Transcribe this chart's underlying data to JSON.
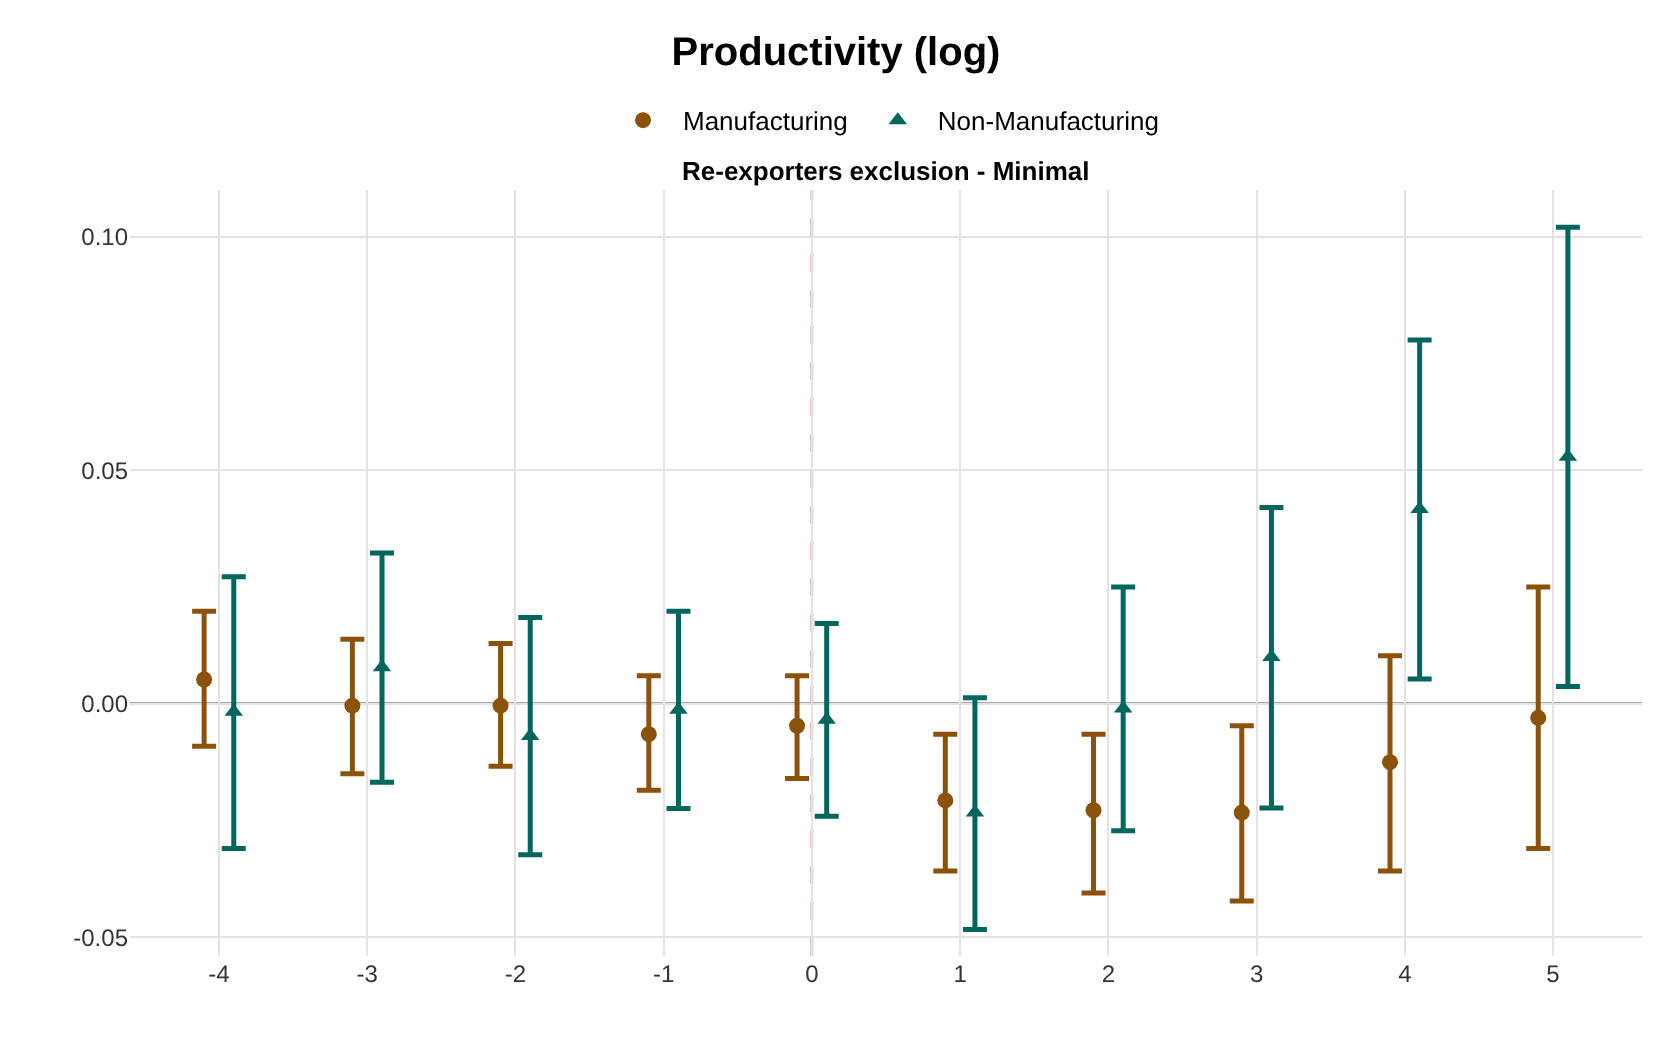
{
  "chart_data": {
    "type": "scatter",
    "title": "Productivity (log)",
    "subtitle": "Re-exporters exclusion - Minimal",
    "xlim": [
      -4.6,
      5.6
    ],
    "xticks": [
      -4,
      -3,
      -2,
      -1,
      0,
      1,
      2,
      3,
      4,
      5
    ],
    "ylim": [
      -0.054,
      0.11
    ],
    "yticks": [
      {
        "value": 0.1,
        "label": "0.10"
      },
      {
        "value": 0.05,
        "label": "0.05"
      },
      {
        "value": 0,
        "label": "0.00"
      },
      {
        "value": -0.05,
        "label": "-0.05"
      }
    ],
    "grid": true,
    "legend": "top",
    "ref_lines": [
      {
        "axis": "x",
        "value": 0,
        "color": "#c0737a",
        "line_style": "dashed"
      },
      {
        "axis": "y",
        "value": 0,
        "color": "#555555",
        "line_style": "solid"
      }
    ],
    "series": [
      {
        "name": "Manufacturing",
        "color": "#8c510a",
        "marker": "circle",
        "x": [
          -4.1,
          -3.1,
          -2.1,
          -1.1,
          -0.1,
          0.9,
          1.9,
          2.9,
          3.9,
          4.9
        ],
        "values": [
          0.0052,
          -0.0004,
          -0.0004,
          -0.0065,
          -0.0047,
          -0.0207,
          -0.0228,
          -0.0233,
          -0.0125,
          -0.003
        ],
        "errors": [
          [
            -0.0091,
            0.0198
          ],
          [
            -0.015,
            0.0138
          ],
          [
            -0.0134,
            0.0129
          ],
          [
            -0.0185,
            0.006
          ],
          [
            -0.016,
            0.006
          ],
          [
            -0.0358,
            -0.0065
          ],
          [
            -0.0405,
            -0.0065
          ],
          [
            -0.0422,
            -0.0047
          ],
          [
            -0.0358,
            0.0103
          ],
          [
            -0.031,
            0.025
          ]
        ]
      },
      {
        "name": "Non-Manufacturing",
        "color": "#01665e",
        "marker": "triangle",
        "x": [
          -3.9,
          -2.9,
          -1.9,
          -0.9,
          0.1,
          1.1,
          2.1,
          3.1,
          4.1,
          5.1
        ],
        "values": [
          -0.0017,
          0.0078,
          -0.0069,
          -0.0013,
          -0.0034,
          -0.0233,
          -0.001,
          0.01,
          0.0417,
          0.0529
        ],
        "errors": [
          [
            -0.031,
            0.0272
          ],
          [
            -0.0168,
            0.0323
          ],
          [
            -0.0323,
            0.0185
          ],
          [
            -0.0224,
            0.0198
          ],
          [
            -0.0241,
            0.0172
          ],
          [
            -0.0483,
            0.0013
          ],
          [
            -0.0272,
            0.025
          ],
          [
            -0.0223,
            0.042
          ],
          [
            0.0053,
            0.0779
          ],
          [
            0.0037,
            0.102
          ]
        ]
      }
    ]
  }
}
